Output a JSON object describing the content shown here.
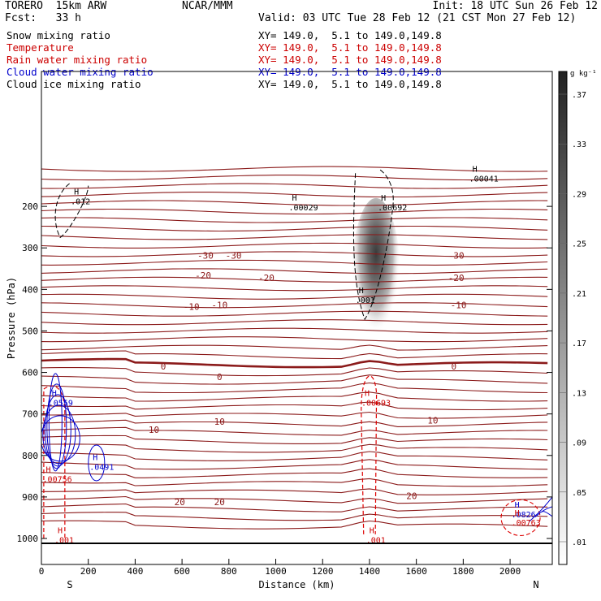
{
  "header": {
    "model": "TORERO  15km ARW",
    "center": "NCAR/MMM",
    "init": "Init: 18 UTC Sun 26 Feb 12",
    "fcst": "Fcst:   33 h",
    "valid": "Valid: 03 UTC Tue 28 Feb 12 (21 CST Mon 27 Feb 12)"
  },
  "legend": [
    {
      "label": "Snow mixing ratio",
      "color": "#000000",
      "info": "XY= 149.0,  5.1 to 149.0,149.8"
    },
    {
      "label": "Temperature",
      "color": "#cc0000",
      "info": "XY= 149.0,  5.1 to 149.0,149.8"
    },
    {
      "label": "Rain water mixing ratio",
      "color": "#cc0000",
      "info": "XY= 149.0,  5.1 to 149.0,149.8"
    },
    {
      "label": "Cloud water mixing ratio",
      "color": "#0000cc",
      "info": "XY= 149.0,  5.1 to 149.0,149.8"
    },
    {
      "label": "Cloud ice mixing ratio",
      "color": "#000000",
      "info": "XY= 149.0,  5.1 to 149.0,149.8"
    }
  ],
  "colors": {
    "temperature": "#8b1a1a",
    "rain": "#dd0000",
    "cloud_water": "#0000cc",
    "ice": "#000000"
  },
  "chart_data": {
    "type": "contour-cross-section",
    "xlabel": "Distance (km)",
    "ylabel": "Pressure (hPa)",
    "xlim": [
      0,
      2180
    ],
    "ylim": [
      1000,
      100
    ],
    "x_ticks": [
      "0",
      "200",
      "400",
      "600",
      "800",
      "1000",
      "1200",
      "1400",
      "1600",
      "1800",
      "2000"
    ],
    "y_ticks": [
      "200",
      "300",
      "400",
      "500",
      "600",
      "700",
      "800",
      "900",
      "1000"
    ],
    "endpoints": {
      "left": "S",
      "right": "N"
    },
    "colorbar": {
      "unit": "g kg⁻¹",
      "levels": [
        ".01",
        ".05",
        ".09",
        ".13",
        ".17",
        ".21",
        ".25",
        ".29",
        ".33",
        ".37"
      ]
    },
    "isotherms": [
      -30,
      -20,
      -10,
      0,
      10,
      20
    ],
    "isotherm_labels": [
      {
        "text": "-30",
        "x": 700,
        "p": 318
      },
      {
        "text": "-30",
        "x": 820,
        "p": 318
      },
      {
        "text": "-30",
        "x": 1770,
        "p": 318
      },
      {
        "text": "-20",
        "x": 690,
        "p": 366
      },
      {
        "text": "-20",
        "x": 960,
        "p": 372
      },
      {
        "text": "-20",
        "x": 1770,
        "p": 372
      },
      {
        "text": "-10",
        "x": 640,
        "p": 441
      },
      {
        "text": "-10",
        "x": 760,
        "p": 437
      },
      {
        "text": "-10",
        "x": 1780,
        "p": 437
      },
      {
        "text": "0",
        "x": 520,
        "p": 585
      },
      {
        "text": "0",
        "x": 760,
        "p": 611
      },
      {
        "text": "0",
        "x": 1760,
        "p": 585
      },
      {
        "text": "10",
        "x": 480,
        "p": 738
      },
      {
        "text": "10",
        "x": 760,
        "p": 718
      },
      {
        "text": "10",
        "x": 1670,
        "p": 715
      },
      {
        "text": "20",
        "x": 590,
        "p": 912
      },
      {
        "text": "20",
        "x": 760,
        "p": 912
      },
      {
        "text": "20",
        "x": 1580,
        "p": 897
      }
    ],
    "maxima_labels": [
      {
        "text": ".012",
        "x": 160,
        "p": 187,
        "color": "#000000"
      },
      {
        "text": ".00029",
        "x": 1090,
        "p": 202,
        "color": "#000000"
      },
      {
        "text": ".00692",
        "x": 1470,
        "p": 202,
        "color": "#000000"
      },
      {
        "text": ".00041",
        "x": 1860,
        "p": 132,
        "color": "#000000"
      },
      {
        "text": ".001",
        "x": 1375,
        "p": 425,
        "color": "#000000"
      },
      {
        "text": ".00693",
        "x": 1400,
        "p": 672,
        "color": "#cc0000"
      },
      {
        "text": ".0559",
        "x": 65,
        "p": 672,
        "color": "#0000cc"
      },
      {
        "text": ".0491",
        "x": 240,
        "p": 827,
        "color": "#0000cc"
      },
      {
        "text": ".00756",
        "x": 40,
        "p": 856,
        "color": "#cc0000"
      },
      {
        "text": ".001",
        "x": 90,
        "p": 1003,
        "color": "#cc0000"
      },
      {
        "text": ".001",
        "x": 1420,
        "p": 1003,
        "color": "#cc0000"
      },
      {
        "text": ".0826",
        "x": 2040,
        "p": 941,
        "color": "#0000cc"
      },
      {
        "text": ".00763",
        "x": 2040,
        "p": 961,
        "color": "#cc0000"
      }
    ],
    "snow_max": 0.37,
    "snow_core": {
      "x": 1400,
      "p_top": 180,
      "p_bottom": 560
    }
  }
}
